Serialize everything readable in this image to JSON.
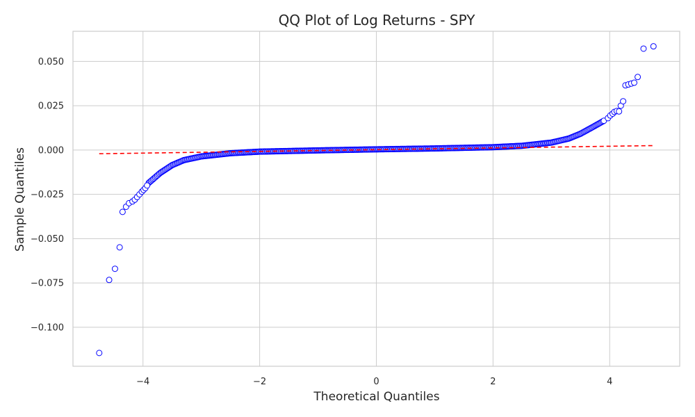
{
  "chart_data": {
    "type": "scatter",
    "title": "QQ Plot of Log Returns - SPY",
    "xlabel": "Theoretical Quantiles",
    "ylabel": "Sample Quantiles",
    "xlim": [
      -5.2,
      5.2
    ],
    "ylim": [
      -0.122,
      0.067
    ],
    "x_ticks": [
      -4,
      -2,
      0,
      2,
      4
    ],
    "x_tick_labels": [
      "−4",
      "−2",
      "0",
      "2",
      "4"
    ],
    "y_ticks": [
      -0.1,
      -0.075,
      -0.05,
      -0.025,
      0.0,
      0.025,
      0.05
    ],
    "y_tick_labels": [
      "−0.100",
      "−0.075",
      "−0.050",
      "−0.025",
      "0.000",
      "0.025",
      "0.050"
    ],
    "grid": true,
    "colors": {
      "points": "#0000ff",
      "fit_line": "#ff0000",
      "grid": "#cccccc",
      "frame": "#cccccc"
    },
    "reference_line": {
      "x": [
        -4.75,
        4.75
      ],
      "y": [
        -0.0021,
        0.0025
      ],
      "style": "dashed"
    },
    "outliers": [
      {
        "x": -4.75,
        "y": -0.1145
      },
      {
        "x": -4.58,
        "y": -0.0733
      },
      {
        "x": -4.48,
        "y": -0.067
      },
      {
        "x": -4.4,
        "y": -0.0549
      },
      {
        "x": -4.35,
        "y": -0.0349
      },
      {
        "x": -4.29,
        "y": -0.032
      },
      {
        "x": -4.24,
        "y": -0.03
      },
      {
        "x": -4.18,
        "y": -0.029
      },
      {
        "x": -4.14,
        "y": -0.028
      },
      {
        "x": -4.1,
        "y": -0.0265
      },
      {
        "x": -4.06,
        "y": -0.025
      },
      {
        "x": -4.02,
        "y": -0.0235
      },
      {
        "x": -3.99,
        "y": -0.0225
      },
      {
        "x": -3.96,
        "y": -0.0215
      },
      {
        "x": -3.93,
        "y": -0.02
      },
      {
        "x": 3.97,
        "y": 0.018
      },
      {
        "x": 4.01,
        "y": 0.0195
      },
      {
        "x": 4.05,
        "y": 0.0205
      },
      {
        "x": 4.08,
        "y": 0.0215
      },
      {
        "x": 4.12,
        "y": 0.022
      },
      {
        "x": 4.16,
        "y": 0.0218
      },
      {
        "x": 4.19,
        "y": 0.025
      },
      {
        "x": 4.23,
        "y": 0.0275
      },
      {
        "x": 4.27,
        "y": 0.0365
      },
      {
        "x": 4.32,
        "y": 0.037
      },
      {
        "x": 4.37,
        "y": 0.0375
      },
      {
        "x": 4.42,
        "y": 0.038
      },
      {
        "x": 4.48,
        "y": 0.0412
      },
      {
        "x": 4.58,
        "y": 0.0572
      },
      {
        "x": 4.75,
        "y": 0.0585
      }
    ],
    "main_curve_knots": [
      {
        "x": -3.9,
        "y": -0.0185
      },
      {
        "x": -3.7,
        "y": -0.0128
      },
      {
        "x": -3.5,
        "y": -0.0085
      },
      {
        "x": -3.3,
        "y": -0.0057
      },
      {
        "x": -3.0,
        "y": -0.0036
      },
      {
        "x": -2.5,
        "y": -0.0018
      },
      {
        "x": -2.0,
        "y": -0.0009
      },
      {
        "x": -1.0,
        "y": -0.0002
      },
      {
        "x": 0.0,
        "y": 0.0004
      },
      {
        "x": 1.0,
        "y": 0.0009
      },
      {
        "x": 2.0,
        "y": 0.0016
      },
      {
        "x": 2.5,
        "y": 0.0024
      },
      {
        "x": 3.0,
        "y": 0.0042
      },
      {
        "x": 3.3,
        "y": 0.0065
      },
      {
        "x": 3.5,
        "y": 0.0092
      },
      {
        "x": 3.7,
        "y": 0.0128
      },
      {
        "x": 3.9,
        "y": 0.0165
      }
    ]
  }
}
